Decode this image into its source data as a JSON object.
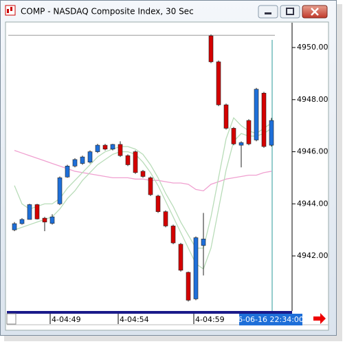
{
  "chart_data": {
    "type": "candlestick",
    "title": "COMP - NASDAQ Composite Index, 30 Sec",
    "categories": [
      null,
      null,
      null,
      null,
      null,
      "4-04:49",
      null,
      null,
      null,
      null,
      null,
      null,
      null,
      null,
      "4-04:54",
      null,
      null,
      null,
      null,
      null,
      null,
      null,
      null,
      null,
      "4-04:59",
      null,
      null,
      null,
      null,
      null,
      null,
      null,
      null,
      null,
      null
    ],
    "open": [
      4943.0,
      4943.24,
      4943.4,
      4943.97,
      4943.45,
      4943.25,
      4944.0,
      4945.03,
      4945.45,
      4945.55,
      4945.6,
      4946.0,
      4946.25,
      4946.1,
      4946.28,
      4945.85,
      4946.0,
      4945.25,
      4945.0,
      4944.3,
      4943.7,
      4943.15,
      4942.45,
      4941.37,
      4940.35,
      4942.4,
      4950.45,
      4949.45,
      4947.8,
      4946.9,
      4946.25,
      4947.2,
      4946.45,
      4948.25,
      4946.25
    ],
    "high": [
      4943.3,
      4943.45,
      4944.0,
      4944.0,
      4943.5,
      4943.6,
      4945.05,
      4945.5,
      4945.75,
      4945.85,
      4946.05,
      4946.3,
      4946.3,
      4946.3,
      4946.4,
      4945.9,
      4946.05,
      4945.3,
      4945.05,
      4944.35,
      4943.75,
      4943.2,
      4942.5,
      4941.4,
      4942.75,
      4943.65,
      4950.5,
      4949.5,
      4947.85,
      4946.95,
      4946.4,
      4947.25,
      4948.45,
      4948.3,
      4947.3
    ],
    "low": [
      4942.95,
      4943.2,
      4943.4,
      4943.4,
      4942.95,
      4943.2,
      4943.95,
      4945.0,
      4945.4,
      4945.5,
      4945.55,
      4945.95,
      4946.05,
      4946.05,
      4945.8,
      4945.45,
      4945.15,
      4945.0,
      4944.3,
      4943.65,
      4943.1,
      4942.45,
      4941.4,
      4940.25,
      4940.3,
      4941.25,
      4949.4,
      4947.75,
      4946.85,
      4946.25,
      4945.4,
      4946.25,
      4946.4,
      4946.15,
      4946.2
    ],
    "close": [
      4943.24,
      4943.4,
      4943.97,
      4943.42,
      4943.3,
      4943.5,
      4945.0,
      4945.45,
      4945.7,
      4945.8,
      4946.0,
      4946.25,
      4946.1,
      4946.28,
      4945.85,
      4945.5,
      4945.2,
      4945.05,
      4944.35,
      4943.7,
      4943.15,
      4942.5,
      4941.45,
      4940.3,
      4942.7,
      4942.65,
      4949.45,
      4947.8,
      4946.9,
      4946.3,
      4946.35,
      4946.3,
      4948.4,
      4946.2,
      4947.2
    ],
    "up_color": "#1e6fd9",
    "down_color": "#d40000",
    "indicators": [
      {
        "color": "#f0a0d0",
        "values": [
          4946.05,
          4945.95,
          4945.85,
          4945.75,
          4945.65,
          4945.55,
          4945.45,
          4945.35,
          4945.25,
          4945.2,
          4945.15,
          4945.1,
          4945.05,
          4945.0,
          4945.0,
          4945.0,
          4944.95,
          4944.95,
          4944.9,
          4944.9,
          4944.85,
          4944.8,
          4944.8,
          4944.75,
          4944.55,
          4944.5,
          4944.75,
          4944.85,
          4944.95,
          4945.0,
          4945.05,
          4945.1,
          4945.1,
          4945.2,
          4945.25
        ]
      },
      {
        "color": "#b8dcb8",
        "values": [
          4944.7,
          4944.0,
          4943.8,
          4943.9,
          4944.0,
          4944.0,
          4944.2,
          4944.6,
          4944.9,
          4945.2,
          4945.5,
          4945.8,
          4946.0,
          4946.1,
          4946.2,
          4946.2,
          4946.1,
          4945.9,
          4945.5,
          4945.0,
          4944.4,
          4943.9,
          4943.3,
          4942.8,
          4942.3,
          4942.3,
          4943.5,
          4945.0,
          4946.5,
          4947.3,
          4947.0,
          4946.8,
          4946.7,
          4946.9,
          4947.1
        ]
      },
      {
        "color": "#b8dcb8",
        "values": [
          4943.0,
          4943.1,
          4943.2,
          4943.3,
          4943.4,
          4943.5,
          4943.8,
          4944.2,
          4944.5,
          4944.9,
          4945.2,
          4945.5,
          4945.7,
          4945.9,
          4946.0,
          4946.0,
          4945.9,
          4945.6,
          4945.2,
          4944.7,
          4944.1,
          4943.5,
          4942.9,
          4942.3,
          4941.7,
          4941.5,
          4942.3,
          4943.8,
          4945.3,
          4946.4,
          4946.7,
          4946.6,
          4946.6,
          4946.7,
          4946.9
        ]
      }
    ],
    "high_line": 4950.47,
    "cursor_label": "6-06-16 22:34:00",
    "ylim": [
      4939.94,
      4950.9
    ],
    "yticks": [
      {
        "value": 4942,
        "label": "4942.00"
      },
      {
        "value": 4944,
        "label": "4944.00"
      },
      {
        "value": 4946,
        "label": "4946.00"
      },
      {
        "value": 4948,
        "label": "4948.00"
      },
      {
        "value": 4950,
        "label": "4950.00"
      }
    ]
  }
}
